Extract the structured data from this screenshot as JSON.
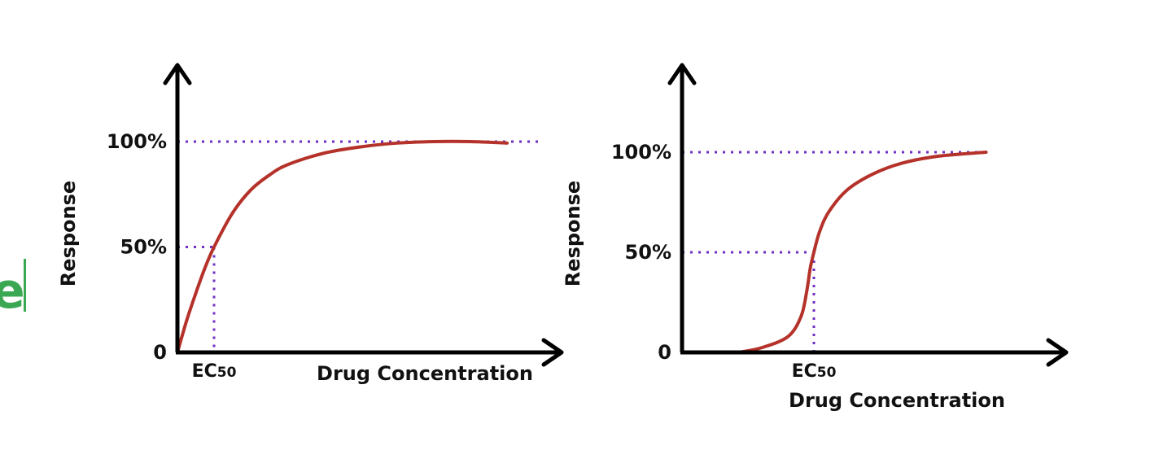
{
  "edge_fragment": {
    "text": "e",
    "color": "#3aa853"
  },
  "colors": {
    "axis": "#000000",
    "curve": "#b5322a",
    "guide": "#6f2fc4"
  },
  "chart_data": [
    {
      "type": "line",
      "title": "",
      "xlabel": "Drug Concentration",
      "ylabel": "Response",
      "y_ticks": [
        "0",
        "50%",
        "100%"
      ],
      "ylim": [
        0,
        150
      ],
      "xlim": [
        0,
        10
      ],
      "ec50_label": {
        "main": "EC",
        "sub": "50"
      },
      "ec50_x": 1.0,
      "reference_lines": [
        100,
        50
      ],
      "series": [
        {
          "x": [
            0,
            0.25,
            0.5,
            0.75,
            1.0,
            1.5,
            2.0,
            2.5,
            3.0,
            4.0,
            5.0,
            6.0,
            7.0,
            8.0,
            9.0
          ],
          "y": [
            0,
            15,
            28,
            40,
            50,
            66,
            77,
            84,
            89,
            94.5,
            97.5,
            99.3,
            100,
            100,
            99.3
          ]
        }
      ]
    },
    {
      "type": "line",
      "title": "",
      "xlabel": "Drug Concentration",
      "ylabel": "Response",
      "y_ticks": [
        "0",
        "50%",
        "100%"
      ],
      "ylim": [
        0,
        150
      ],
      "xlim": [
        0,
        10
      ],
      "ec50_label": {
        "main": "EC",
        "sub": "50"
      },
      "ec50_x": 3.6,
      "reference_lines": [
        100,
        50
      ],
      "series": [
        {
          "x": [
            1.55,
            2.2,
            2.9,
            3.25,
            3.4,
            3.5,
            3.6,
            3.75,
            4.0,
            4.5,
            5.2,
            6.0,
            7.0,
            8.3
          ],
          "y": [
            0,
            2.5,
            8,
            18,
            30,
            42,
            50,
            60,
            70,
            81,
            89,
            94.5,
            98,
            100
          ]
        }
      ]
    }
  ]
}
